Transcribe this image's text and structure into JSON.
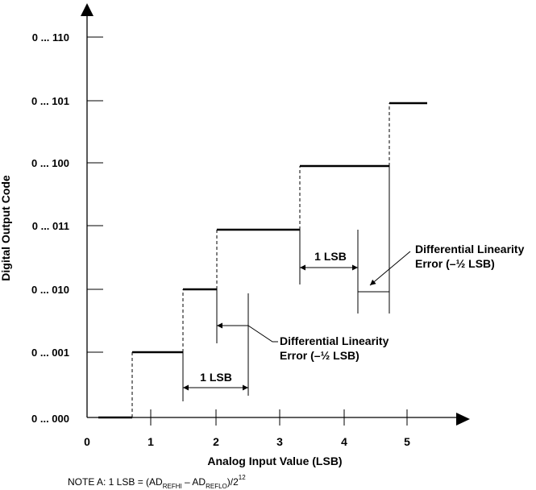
{
  "diagram": {
    "y_axis_title": "Digital Output Code",
    "x_axis_title": "Analog Input Value (LSB)",
    "y_ticks": [
      "0 ... 000",
      "0 ... 001",
      "0 ... 010",
      "0 ... 011",
      "0 ... 100",
      "0 ... 101",
      "0 ... 110"
    ],
    "x_ticks": [
      "0",
      "1",
      "2",
      "3",
      "4",
      "5"
    ],
    "annotations": {
      "lsb_lower": "1 LSB",
      "lsb_upper": "1 LSB",
      "dle_lower_line1": "Differential Linearity",
      "dle_lower_line2": "Error (–½ LSB)",
      "dle_upper_line1": "Differential Linearity",
      "dle_upper_line2": "Error (–½ LSB)"
    },
    "note": {
      "prefix": "NOTE A:  1 LSB = (AD",
      "sub1": "REFHI",
      "mid": " – AD",
      "sub2": "REFLO",
      "post": ")/2",
      "sup": "12"
    },
    "staircase": {
      "codes": [
        0,
        1,
        2,
        3,
        4,
        5
      ],
      "step_start_lsb": [
        0.2,
        0.75,
        1.5,
        2.0,
        3.3,
        4.75
      ],
      "step_end_lsb": [
        0.75,
        1.5,
        2.0,
        3.3,
        4.75,
        5.35
      ]
    }
  }
}
